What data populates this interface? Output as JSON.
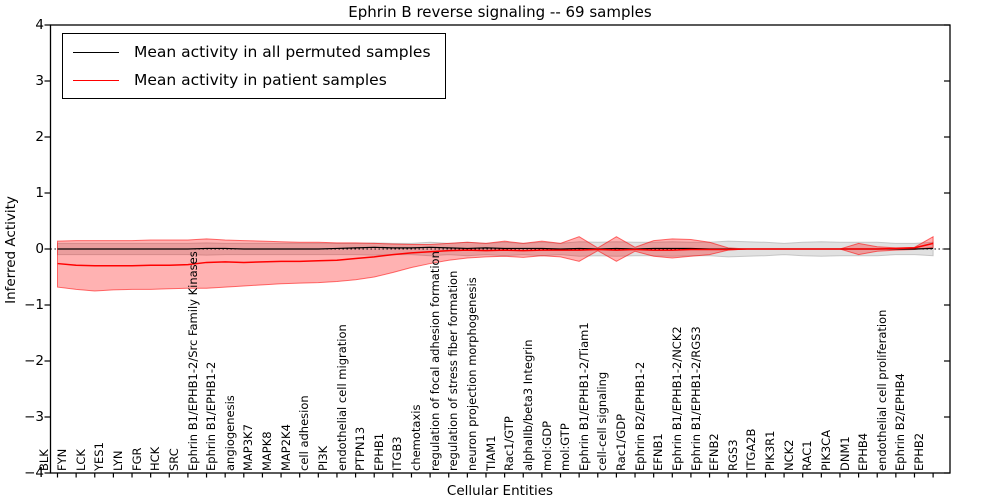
{
  "chart_data": {
    "type": "line",
    "title": "Ephrin B reverse signaling -- 69 samples",
    "xlabel": "Cellular Entities",
    "ylabel": "Inferred Activity",
    "ylim": [
      -4,
      4
    ],
    "yticks": [
      4,
      3,
      2,
      1,
      0,
      -1,
      -2,
      -3,
      -4
    ],
    "yticklabels": [
      "4",
      "3",
      "2",
      "1",
      "0",
      "−1",
      "−2",
      "−3",
      "−4"
    ],
    "grid": false,
    "legend_position": "upper left",
    "x_tick_rotation": 90,
    "zero_line": {
      "style": "dotted",
      "color": "#000000"
    },
    "categories": [
      "BLK",
      "FYN",
      "LCK",
      "YES1",
      "LYN",
      "FGR",
      "HCK",
      "SRC",
      "Ephrin B1/EPHB1-2/Src Family Kinases",
      "Ephrin B1/EPHB1-2",
      "angiogenesis",
      "MAP3K7",
      "MAPK8",
      "MAP2K4",
      "cell adhesion",
      "PI3K",
      "endothelial cell migration",
      "PTPN13",
      "EPHB1",
      "ITGB3",
      "chemotaxis",
      "regulation of focal adhesion formation",
      "regulation of stress fiber formation",
      "neuron projection morphogenesis",
      "TIAM1",
      "Rac1/GTP",
      "alphaIIb/beta3 Integrin",
      "mol:GDP",
      "mol:GTP",
      "Ephrin B1/EPHB1-2/Tiam1",
      "cell-cell signaling",
      "Rac1/GDP",
      "Ephrin B2/EPHB1-2",
      "EFNB1",
      "Ephrin B1/EPHB1-2/NCK2",
      "Ephrin B1/EPHB1-2/RGS3",
      "EFNB2",
      "RGS3",
      "ITGA2B",
      "PIK3R1",
      "NCK2",
      "RAC1",
      "PIK3CA",
      "DNM1",
      "EPHB4",
      "endothelial cell proliferation",
      "Ephrin B2/EPHB4",
      "EPHB2"
    ],
    "series": [
      {
        "name": "Mean activity in all permuted samples",
        "color": "#000000",
        "values": [
          0,
          0,
          0,
          0,
          0,
          0,
          0,
          0,
          0.01,
          0.01,
          0,
          0,
          0,
          0,
          0,
          0.01,
          0.02,
          0.03,
          0.02,
          0.02,
          0.03,
          0.02,
          0.01,
          0.02,
          0.01,
          0.01,
          0.01,
          0,
          0.01,
          0,
          0.01,
          0,
          0.01,
          0.01,
          0.01,
          0,
          0,
          0,
          0,
          0,
          0,
          0,
          0,
          0,
          0,
          0,
          0,
          0.01
        ]
      },
      {
        "name": "Mean activity in patient samples",
        "color": "#ff0000",
        "values": [
          -0.26,
          -0.29,
          -0.3,
          -0.3,
          -0.3,
          -0.29,
          -0.29,
          -0.28,
          -0.24,
          -0.23,
          -0.24,
          -0.23,
          -0.22,
          -0.22,
          -0.21,
          -0.2,
          -0.17,
          -0.14,
          -0.1,
          -0.07,
          -0.05,
          -0.03,
          -0.02,
          -0.03,
          -0.02,
          -0.03,
          -0.02,
          -0.02,
          -0.02,
          -0.01,
          -0.02,
          -0.01,
          -0.02,
          -0.02,
          -0.01,
          -0.01,
          -0.01,
          0,
          0,
          0,
          0,
          0,
          0,
          0,
          0,
          0.01,
          0.02,
          0.1
        ]
      }
    ],
    "bands": [
      {
        "name": "permuted samples spread",
        "color": "#aaaaaa",
        "opacity": 0.35,
        "upper": [
          0.1,
          0.1,
          0.1,
          0.1,
          0.1,
          0.1,
          0.1,
          0.1,
          0.11,
          0.1,
          0.1,
          0.1,
          0.1,
          0.1,
          0.1,
          0.1,
          0.1,
          0.11,
          0.1,
          0.1,
          0.12,
          0.1,
          0.12,
          0.1,
          0.12,
          0.1,
          0.12,
          0.1,
          0.13,
          0.12,
          0.13,
          0.12,
          0.12,
          0.13,
          0.12,
          0.12,
          0.14,
          0.13,
          0.12,
          0.1,
          0.12,
          0.13,
          0.12,
          0.12,
          0.12,
          0.1,
          0.1,
          0.12
        ],
        "lower": [
          -0.1,
          -0.1,
          -0.1,
          -0.1,
          -0.1,
          -0.1,
          -0.1,
          -0.1,
          -0.11,
          -0.1,
          -0.1,
          -0.1,
          -0.1,
          -0.1,
          -0.1,
          -0.1,
          -0.1,
          -0.11,
          -0.1,
          -0.1,
          -0.12,
          -0.1,
          -0.12,
          -0.1,
          -0.12,
          -0.1,
          -0.12,
          -0.1,
          -0.13,
          -0.12,
          -0.13,
          -0.12,
          -0.12,
          -0.13,
          -0.12,
          -0.12,
          -0.14,
          -0.13,
          -0.12,
          -0.1,
          -0.12,
          -0.13,
          -0.12,
          -0.12,
          -0.12,
          -0.1,
          -0.1,
          -0.12
        ]
      },
      {
        "name": "patient samples spread",
        "color": "#ff0000",
        "opacity": 0.3,
        "upper": [
          0.14,
          0.15,
          0.15,
          0.15,
          0.15,
          0.16,
          0.16,
          0.16,
          0.18,
          0.16,
          0.15,
          0.14,
          0.13,
          0.12,
          0.12,
          0.11,
          0.11,
          0.1,
          0.09,
          0.08,
          0.08,
          0.1,
          0.12,
          0.1,
          0.14,
          0.1,
          0.14,
          0.1,
          0.22,
          0.02,
          0.22,
          0.03,
          0.15,
          0.18,
          0.17,
          0.12,
          0.02,
          0,
          0,
          0,
          0,
          0,
          0,
          0.1,
          0.04,
          0.02,
          0.03,
          0.22
        ],
        "lower": [
          -0.68,
          -0.72,
          -0.75,
          -0.73,
          -0.72,
          -0.72,
          -0.71,
          -0.7,
          -0.7,
          -0.68,
          -0.66,
          -0.64,
          -0.62,
          -0.61,
          -0.6,
          -0.58,
          -0.55,
          -0.5,
          -0.42,
          -0.33,
          -0.26,
          -0.2,
          -0.16,
          -0.14,
          -0.13,
          -0.15,
          -0.12,
          -0.14,
          -0.22,
          -0.03,
          -0.22,
          -0.04,
          -0.13,
          -0.16,
          -0.13,
          -0.1,
          -0.02,
          0,
          0,
          0,
          0,
          0,
          0,
          -0.1,
          -0.04,
          -0.02,
          -0.01,
          0.03
        ]
      }
    ]
  }
}
